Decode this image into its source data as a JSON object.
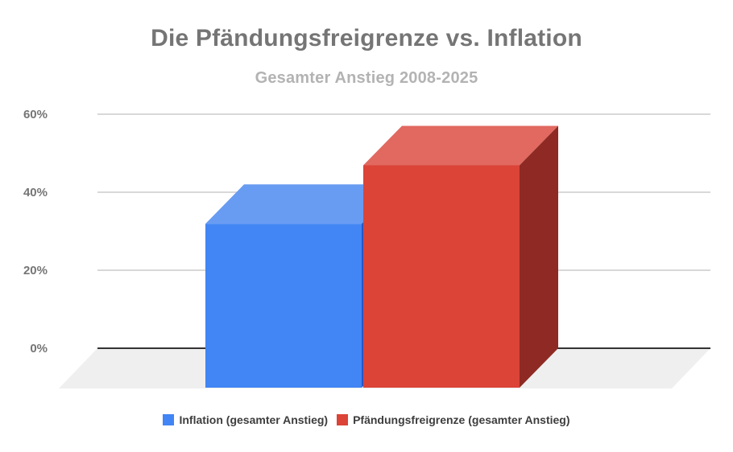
{
  "title": "Die Pfändungsfreigrenze vs. Inflation",
  "subtitle": "Gesamter Anstieg 2008-2025",
  "colors": {
    "background": "#ffffff",
    "title_text": "#757575",
    "subtitle_text": "#b3b3b3",
    "axis_label_text": "#757575",
    "legend_text": "#3d3d3d",
    "gridline": "#cccccc",
    "baseline": "#333333",
    "floor": "#efefef"
  },
  "chart_data": {
    "type": "bar",
    "variant": "3d-column",
    "title": "Die Pfändungsfreigrenze vs. Inflation",
    "subtitle": "Gesamter Anstieg 2008-2025",
    "categories": [
      ""
    ],
    "series": [
      {
        "name": "Inflation (gesamter Anstieg)",
        "values": [
          42
        ],
        "color": "#4285f4",
        "color_top": "#689cf2",
        "color_side": "#2a56c6"
      },
      {
        "name": "Pfändungsfreigrenze (gesamter Anstieg)",
        "values": [
          57
        ],
        "color": "#db4437",
        "color_top": "#e16960",
        "color_side": "#8e2a23"
      }
    ],
    "unit": "%",
    "ylabel": "",
    "ylim": [
      0,
      60
    ],
    "y_ticks": [
      0,
      20,
      40,
      60
    ],
    "y_tick_labels": [
      "0%",
      "20%",
      "40%",
      "60%"
    ],
    "grid": true,
    "legend_position": "bottom"
  }
}
